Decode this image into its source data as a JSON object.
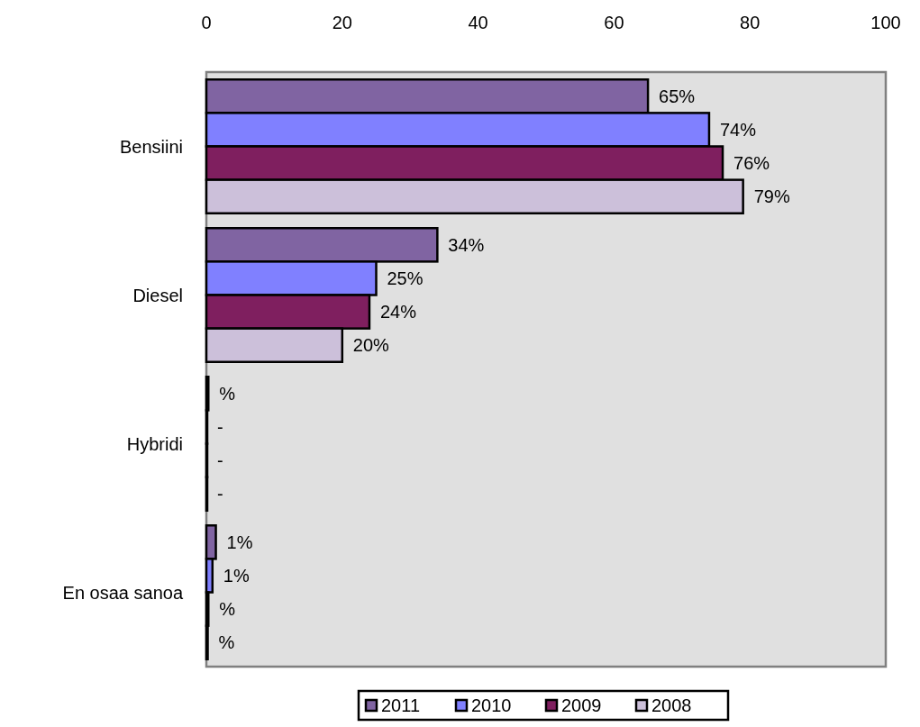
{
  "chart_data": {
    "type": "bar",
    "orientation": "horizontal",
    "categories": [
      "Bensiini",
      "Diesel",
      "Hybridi",
      "En osaa sanoa"
    ],
    "series": [
      {
        "name": "2011",
        "color": "#8064a2",
        "values": [
          65,
          34,
          0.3,
          1.4
        ],
        "value_labels": [
          "65%",
          "34%",
          "%",
          "1%"
        ]
      },
      {
        "name": "2010",
        "color": "#8080ff",
        "values": [
          74,
          25,
          0,
          0.9
        ],
        "value_labels": [
          "74%",
          "25%",
          "-",
          "1%"
        ]
      },
      {
        "name": "2009",
        "color": "#7f1f5f",
        "values": [
          76,
          24,
          0,
          0.3
        ],
        "value_labels": [
          "76%",
          "24%",
          "-",
          "%"
        ]
      },
      {
        "name": "2008",
        "color": "#ccc0da",
        "values": [
          79,
          20,
          0,
          0.2
        ],
        "value_labels": [
          "79%",
          "20%",
          "-",
          "%"
        ]
      }
    ],
    "xlim": [
      0,
      100
    ],
    "xticks": [
      0,
      20,
      40,
      60,
      80,
      100
    ],
    "grid": false,
    "legend": "bottom"
  }
}
